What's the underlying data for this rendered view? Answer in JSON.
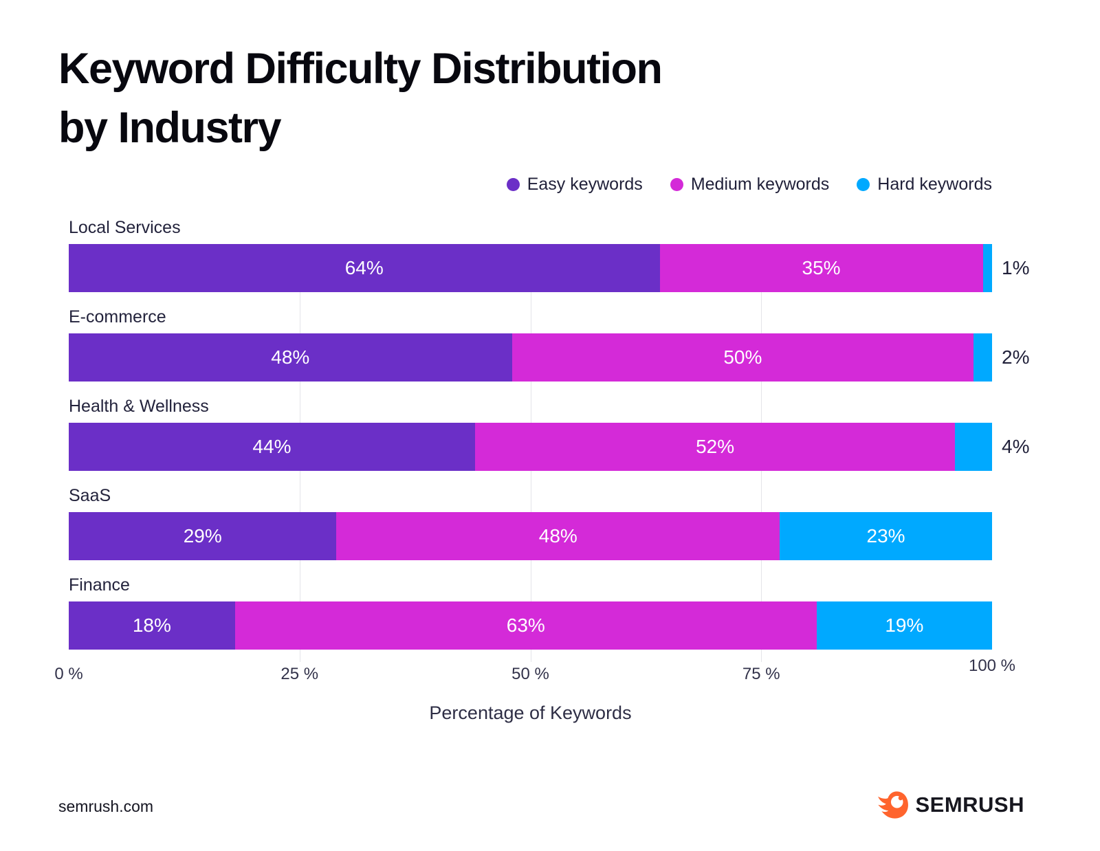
{
  "header": {
    "title_lines": [
      "Keyword Difficulty Distribution",
      "by Industry"
    ]
  },
  "chart_data": {
    "type": "bar",
    "orientation": "horizontal",
    "stacked": true,
    "title": "Keyword Difficulty Distribution by Industry",
    "categories": [
      "Local Services",
      "E-commerce",
      "Health & Wellness",
      "SaaS",
      "Finance"
    ],
    "series": [
      {
        "name": "Easy keywords",
        "color": "#6B2FC7",
        "values": [
          64,
          48,
          44,
          29,
          18
        ]
      },
      {
        "name": "Medium keywords",
        "color": "#D42AD8",
        "values": [
          35,
          50,
          52,
          48,
          63
        ]
      },
      {
        "name": "Hard keywords",
        "color": "#00A9FF",
        "values": [
          1,
          2,
          4,
          23,
          19
        ]
      }
    ],
    "value_suffix": "%",
    "xlabel": "Percentage of Keywords",
    "x_ticks": [
      "0 %",
      "25 %",
      "50 %",
      "75 %",
      "100 %"
    ],
    "xlim": [
      0,
      100
    ],
    "grid": {
      "vertical_lines_at": [
        25,
        50,
        75
      ]
    },
    "legend_position": "top-right"
  },
  "footer": {
    "site": "semrush.com",
    "logo_text": "SEMRUSH",
    "logo_color": "#FF642D"
  }
}
